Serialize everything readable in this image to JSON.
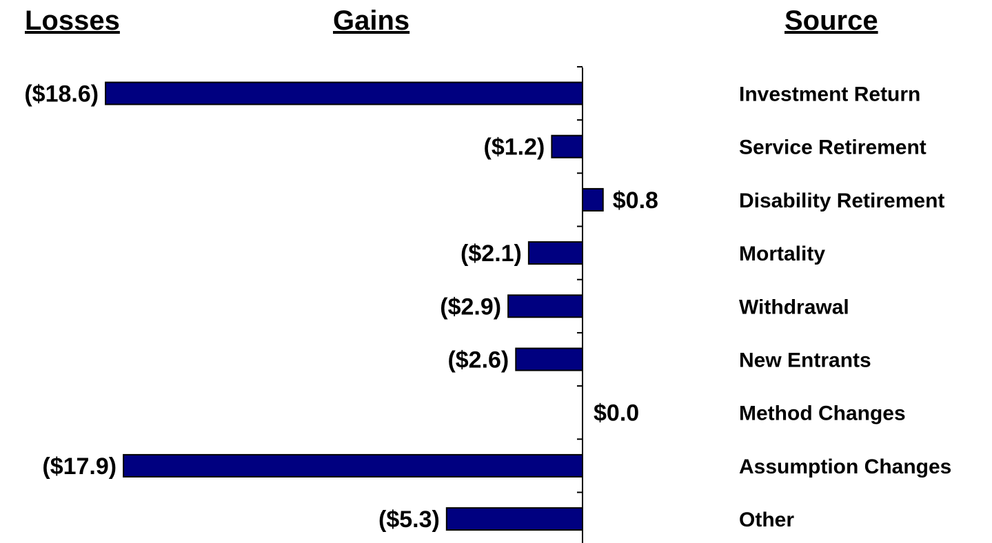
{
  "headers": {
    "losses": "Losses",
    "gains": "Gains",
    "source": "Source"
  },
  "colors": {
    "bar_fill": "#000080",
    "bar_stroke": "#000000",
    "text": "#000000"
  },
  "chart_data": {
    "type": "bar",
    "orientation": "horizontal",
    "categories": [
      "Investment Return",
      "Service Retirement",
      "Disability Retirement",
      "Mortality",
      "Withdrawal",
      "New Entrants",
      "Method Changes",
      "Assumption Changes",
      "Other"
    ],
    "values": [
      -18.6,
      -1.2,
      0.8,
      -2.1,
      -2.9,
      -2.6,
      0.0,
      -17.9,
      -5.3
    ],
    "value_labels": [
      "($18.6)",
      "($1.2)",
      "$0.8",
      "($2.1)",
      "($2.9)",
      "($2.6)",
      "$0.0",
      "($17.9)",
      "($5.3)"
    ],
    "xlim": [
      -18.6,
      0.8
    ],
    "grid": false,
    "legend": "none"
  }
}
